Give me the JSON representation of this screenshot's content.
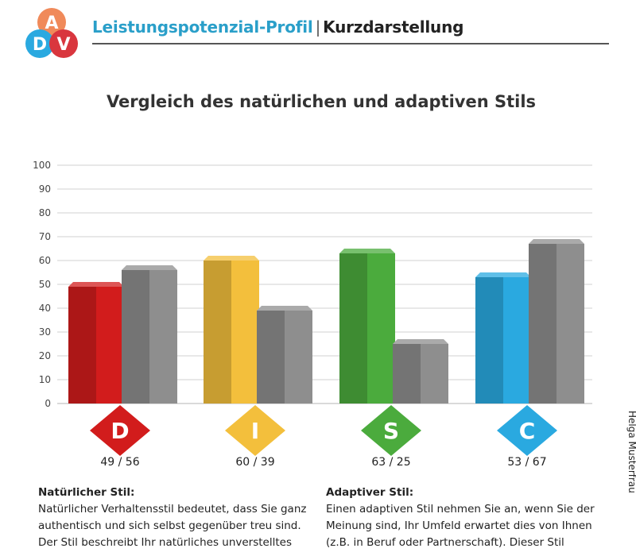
{
  "header": {
    "brand": "Leistungspotenzial-Profil",
    "separator": "|",
    "subtitle": "Kurzdarstellung",
    "logo_letters": [
      "A",
      "D",
      "V"
    ]
  },
  "side_label": "Helga Musterfrau",
  "text": {
    "left_heading": "Natürlicher Stil:",
    "left_body": "Natürlicher Verhaltensstil bedeutet, dass Sie ganz authentisch und sich selbst gegenüber treu sind. Der Stil beschreibt Ihr natürliches unverstelltes",
    "right_heading": "Adaptiver Stil:",
    "right_body": "Einen adaptiven Stil nehmen Sie an, wenn Sie der Meinung sind, Ihr Umfeld erwartet dies von Ihnen (z.B. in Beruf oder Partnerschaft). Dieser Stil"
  },
  "chart_data": {
    "type": "bar",
    "title": "Vergleich des natürlichen und adaptiven Stils",
    "categories": [
      "D",
      "I",
      "S",
      "C"
    ],
    "value_labels": [
      "49 / 56",
      "60 / 39",
      "63 / 25",
      "53 / 67"
    ],
    "series": [
      {
        "values": [
          49,
          60,
          63,
          53
        ]
      },
      {
        "values": [
          56,
          39,
          25,
          67
        ]
      }
    ],
    "colors": {
      "natural": [
        "#d21c1c",
        "#f3bf3c",
        "#4bab3d",
        "#2aa9e0"
      ],
      "adaptive": "#8e8e8e"
    },
    "ylim": [
      0,
      100
    ],
    "yticks": [
      0,
      10,
      20,
      30,
      40,
      50,
      60,
      70,
      80,
      90,
      100
    ],
    "grid": true,
    "xlabel": "",
    "ylabel": ""
  }
}
